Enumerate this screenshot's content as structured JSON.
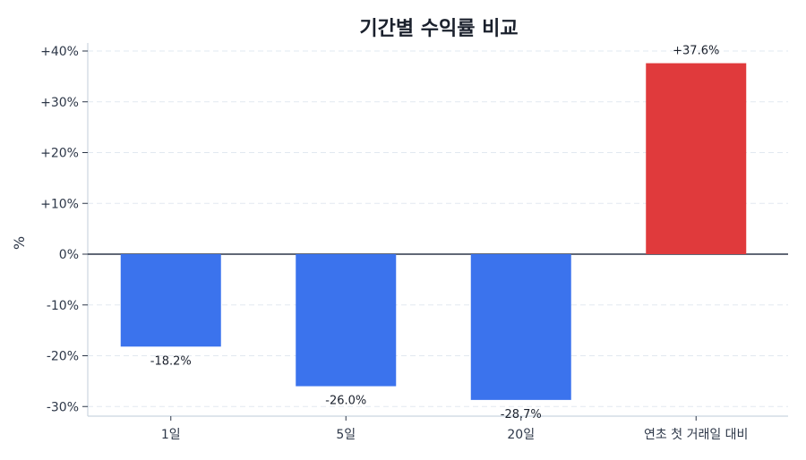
{
  "chart_data": {
    "type": "bar",
    "title": "기간별 수익률 비교",
    "xlabel": "",
    "ylabel": "%",
    "categories": [
      "1일",
      "5일",
      "20일",
      "연초 첫 거래일 대비"
    ],
    "values": [
      -18.2,
      -26.0,
      -28.7,
      37.6
    ],
    "value_labels": [
      "-18.2%",
      "-26.0%",
      "-28.7%",
      "+37.6%"
    ],
    "colors": [
      "#3b73ed",
      "#3b73ed",
      "#3b73ed",
      "#e03a3c"
    ],
    "ylim": [
      -32,
      42
    ],
    "yticks": [
      40,
      30,
      20,
      10,
      0,
      -10,
      -20,
      -30
    ],
    "ytick_labels": [
      "+40%",
      "+30%",
      "+20%",
      "+10%",
      "0%",
      "-10%",
      "-20%",
      "-30%"
    ],
    "grid": true,
    "legend": null
  },
  "colors": {
    "negative": "#3b73ed",
    "positive": "#e03a3c",
    "zero_line": "#2d3748",
    "grid": "#e2e8f0",
    "axis": "#cbd5e0"
  }
}
